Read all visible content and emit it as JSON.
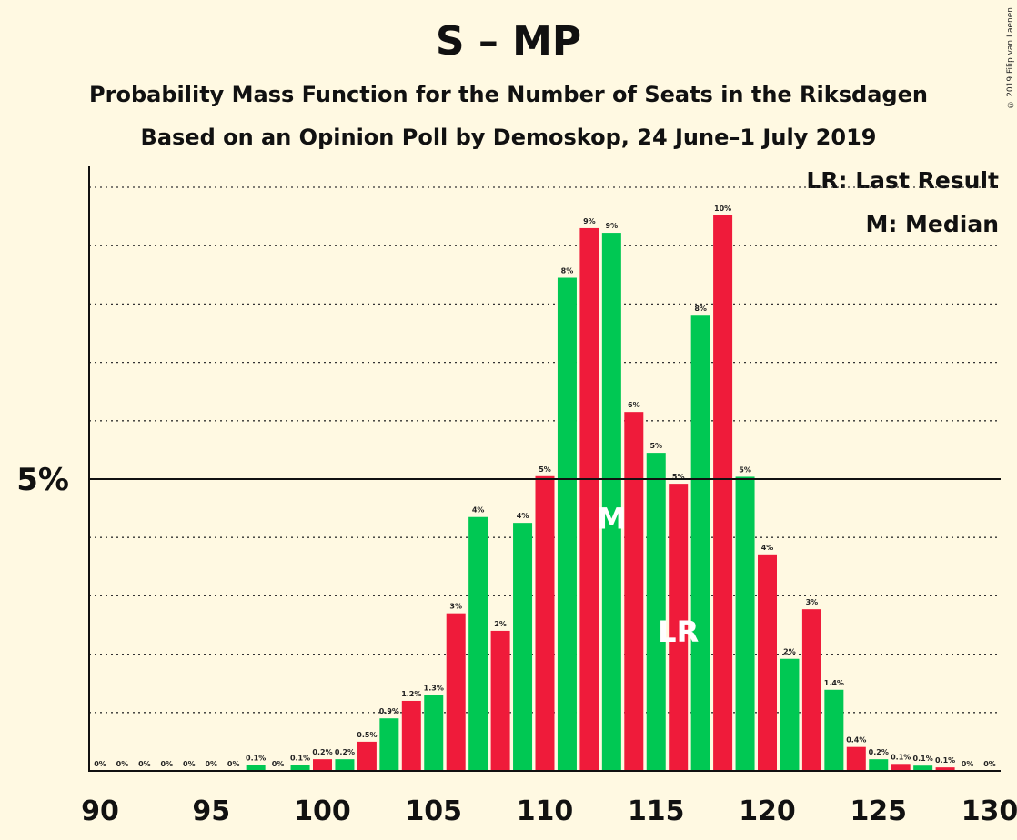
{
  "title": "S – MP",
  "subtitle1": "Probability Mass Function for the Number of Seats in the Riksdagen",
  "subtitle2": "Based on an Opinion Poll by Demoskop, 24 June–1 July 2019",
  "copyright": "© 2019 Filip van Laenen",
  "legend": {
    "last_result": "LR: Last Result",
    "median": "M: Median"
  },
  "colors": {
    "green": "#00C853",
    "red": "#EF1B3A",
    "background": "#FFF9E2"
  },
  "chart_data": {
    "type": "bar",
    "x": [
      90,
      91,
      92,
      93,
      94,
      95,
      96,
      97,
      98,
      99,
      100,
      101,
      102,
      103,
      104,
      105,
      106,
      107,
      108,
      109,
      110,
      111,
      112,
      113,
      114,
      115,
      116,
      117,
      118,
      119,
      120,
      121,
      122,
      123,
      124,
      125,
      126,
      127,
      128,
      129,
      130
    ],
    "values": [
      0,
      0,
      0,
      0,
      0,
      0,
      0,
      0.1,
      0,
      0.1,
      0.2,
      0.2,
      0.5,
      0.9,
      1.2,
      1.3,
      2.7,
      4.35,
      2.4,
      4.25,
      5.05,
      8.45,
      9.3,
      9.22,
      6.15,
      5.45,
      4.92,
      7.8,
      9.52,
      5.04,
      3.71,
      1.92,
      2.77,
      1.39,
      0.41,
      0.2,
      0.12,
      0.09,
      0.06,
      0,
      0
    ],
    "labels": [
      "0%",
      "0%",
      "0%",
      "0%",
      "0%",
      "0%",
      "0%",
      "0.1%",
      "0%",
      "0.1%",
      "0.2%",
      "0.2%",
      "0.5%",
      "0.9%",
      "1.2%",
      "1.3%",
      "3%",
      "4%",
      "2%",
      "4%",
      "5%",
      "8%",
      "9%",
      "9%",
      "6%",
      "5%",
      "5%",
      "8%",
      "10%",
      "5%",
      "4%",
      "2%",
      "3%",
      "1.4%",
      "0.4%",
      "0.2%",
      "0.1%",
      "0.1%",
      "0.1%",
      "0%",
      "0%"
    ],
    "x_ticks": [
      "90",
      "95",
      "100",
      "105",
      "110",
      "115",
      "120",
      "125",
      "130"
    ],
    "y_tick_label": "5%",
    "ylim": [
      0,
      10.35
    ],
    "median_seat": 113,
    "median_marker": "M",
    "last_result_seat": 116,
    "last_result_marker": "LR",
    "grid": "dotted horizontal, solid at 5%",
    "legend_placement": "top-right"
  }
}
